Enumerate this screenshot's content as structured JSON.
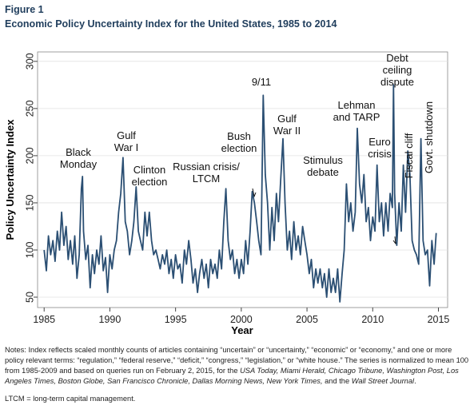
{
  "chart_data": {
    "type": "line",
    "figure_label": "Figure 1",
    "title": "Economic Policy Uncertainty Index for the United States, 1985 to 2014",
    "xlabel": "Year",
    "ylabel": "Policy Uncertainty Index",
    "xlim": [
      1984.5,
      2015.7
    ],
    "ylim": [
      39,
      310
    ],
    "xticks": [
      1985,
      1990,
      1995,
      2000,
      2005,
      2010,
      2015
    ],
    "yticks": [
      50,
      100,
      150,
      200,
      250,
      300
    ],
    "grid": true,
    "color": "#2b4f73",
    "x": [
      1985,
      1985.17,
      1985.33,
      1985.5,
      1985.67,
      1985.83,
      1986,
      1986.17,
      1986.33,
      1986.5,
      1986.67,
      1986.83,
      1987,
      1987.17,
      1987.33,
      1987.5,
      1987.67,
      1987.83,
      1987.92,
      1988,
      1988.17,
      1988.33,
      1988.5,
      1988.67,
      1988.83,
      1989,
      1989.17,
      1989.33,
      1989.5,
      1989.67,
      1989.83,
      1990,
      1990.17,
      1990.33,
      1990.5,
      1990.67,
      1990.83,
      1991,
      1991.17,
      1991.33,
      1991.5,
      1991.67,
      1991.83,
      1992,
      1992.17,
      1992.33,
      1992.5,
      1992.67,
      1992.83,
      1993,
      1993.17,
      1993.33,
      1993.5,
      1993.67,
      1993.83,
      1994,
      1994.17,
      1994.33,
      1994.5,
      1994.67,
      1994.83,
      1995,
      1995.17,
      1995.33,
      1995.5,
      1995.67,
      1995.83,
      1996,
      1996.17,
      1996.33,
      1996.5,
      1996.67,
      1996.83,
      1997,
      1997.17,
      1997.33,
      1997.5,
      1997.67,
      1997.83,
      1998,
      1998.17,
      1998.33,
      1998.5,
      1998.67,
      1998.83,
      1999,
      1999.17,
      1999.33,
      1999.5,
      1999.67,
      1999.83,
      2000,
      2000.17,
      2000.33,
      2000.5,
      2000.67,
      2000.83,
      2001,
      2001.17,
      2001.33,
      2001.5,
      2001.67,
      2001.83,
      2002,
      2002.17,
      2002.33,
      2002.5,
      2002.67,
      2002.83,
      2003,
      2003.17,
      2003.33,
      2003.5,
      2003.67,
      2003.83,
      2004,
      2004.17,
      2004.33,
      2004.5,
      2004.67,
      2004.83,
      2005,
      2005.17,
      2005.33,
      2005.5,
      2005.67,
      2005.83,
      2006,
      2006.17,
      2006.33,
      2006.5,
      2006.67,
      2006.83,
      2007,
      2007.17,
      2007.33,
      2007.5,
      2007.67,
      2007.83,
      2008,
      2008.17,
      2008.33,
      2008.5,
      2008.67,
      2008.83,
      2009,
      2009.17,
      2009.33,
      2009.5,
      2009.67,
      2009.83,
      2010,
      2010.17,
      2010.33,
      2010.5,
      2010.67,
      2010.83,
      2011,
      2011.17,
      2011.33,
      2011.5,
      2011.58,
      2011.67,
      2011.83,
      2012,
      2012.17,
      2012.33,
      2012.5,
      2012.67,
      2012.83,
      2013,
      2013.17,
      2013.33,
      2013.5,
      2013.67,
      2013.83,
      2014,
      2014.17,
      2014.33,
      2014.5,
      2014.67,
      2014.83
    ],
    "values": [
      100,
      78,
      115,
      95,
      110,
      88,
      120,
      100,
      140,
      105,
      125,
      90,
      110,
      85,
      115,
      70,
      95,
      165,
      178,
      120,
      90,
      105,
      60,
      95,
      75,
      100,
      85,
      115,
      78,
      92,
      55,
      95,
      80,
      100,
      110,
      140,
      160,
      198,
      130,
      120,
      95,
      110,
      130,
      167,
      120,
      110,
      100,
      140,
      115,
      140,
      110,
      95,
      100,
      90,
      80,
      95,
      85,
      100,
      75,
      90,
      70,
      95,
      80,
      85,
      65,
      100,
      85,
      110,
      90,
      65,
      80,
      55,
      75,
      90,
      70,
      85,
      60,
      90,
      75,
      85,
      70,
      100,
      80,
      130,
      165,
      110,
      90,
      100,
      75,
      90,
      70,
      90,
      75,
      110,
      85,
      120,
      162,
      150,
      130,
      110,
      95,
      264,
      180,
      150,
      100,
      145,
      110,
      160,
      130,
      175,
      218,
      150,
      100,
      120,
      90,
      130,
      100,
      115,
      95,
      125,
      110,
      95,
      75,
      90,
      60,
      80,
      65,
      80,
      60,
      75,
      50,
      80,
      55,
      70,
      55,
      80,
      45,
      75,
      100,
      170,
      130,
      150,
      120,
      140,
      229,
      170,
      150,
      180,
      130,
      145,
      110,
      135,
      120,
      190,
      130,
      150,
      115,
      150,
      120,
      160,
      145,
      275,
      160,
      105,
      150,
      120,
      190,
      140,
      205,
      180,
      110,
      100,
      95,
      85,
      218,
      110,
      95,
      100,
      62,
      110,
      85,
      118
    ],
    "annotations": [
      {
        "lines": [
          "Black",
          "Monday"
        ]
      },
      {
        "lines": [
          "Gulf",
          "War I"
        ]
      },
      {
        "lines": [
          "Clinton",
          "election"
        ]
      },
      {
        "lines": [
          "Russian crisis/",
          "LTCM"
        ]
      },
      {
        "lines": [
          "Bush",
          "election"
        ]
      },
      {
        "lines": [
          "9/11"
        ]
      },
      {
        "lines": [
          "Gulf",
          "War II"
        ]
      },
      {
        "lines": [
          "Stimulus",
          "debate"
        ]
      },
      {
        "lines": [
          "Lehman",
          "and TARP"
        ]
      },
      {
        "lines": [
          "Debt",
          "ceiling",
          "dispute"
        ]
      },
      {
        "lines": [
          "Euro",
          "crisis"
        ]
      },
      {
        "lines": [
          "Fiscal cliff"
        ]
      },
      {
        "lines": [
          "Govt. shutdown"
        ]
      }
    ],
    "notes": [
      {
        "text": "Notes: Index reflects scaled monthly counts of articles containing “uncertain” or “uncertainty,” “economic” or “economy,” and one or more policy relevant terms: “regulation,” “federal reserve,” “deficit,” “congress,” “legislation,” or “white house.” The series is normalized to mean 100 from 1985-2009 and based on queries run on February 2, 2015, for the ",
        "italic": false
      },
      {
        "text": "USA Today, Miami Herald, Chicago Tribune, Washington Post, Los Angeles Times, Boston Globe, San Francisco Chronicle, Dallas Morning News, New York Times,",
        "italic": true
      },
      {
        "text": " and the ",
        "italic": false
      },
      {
        "text": "Wall Street Journal",
        "italic": true
      },
      {
        "text": ".",
        "italic": false
      }
    ],
    "footnote": "LTCM = long-term capital management."
  }
}
